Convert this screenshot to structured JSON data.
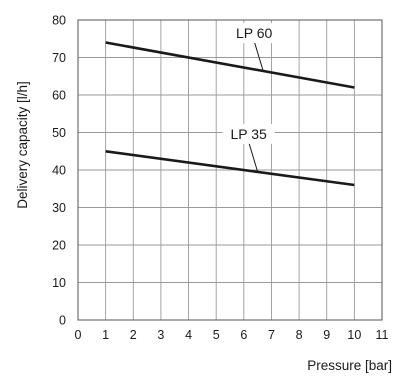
{
  "chart_data": {
    "type": "line",
    "xlabel": "Pressure [bar]",
    "ylabel": "Delivery capacity [l/h]",
    "xlim": [
      0,
      11
    ],
    "ylim": [
      0,
      80
    ],
    "x_ticks": [
      "0",
      "1",
      "2",
      "3",
      "4",
      "5",
      "6",
      "7",
      "8",
      "9",
      "10",
      "11"
    ],
    "y_ticks": [
      "0",
      "10",
      "20",
      "30",
      "40",
      "50",
      "60",
      "70",
      "80"
    ],
    "grid": true,
    "legend": "inline labels",
    "series": [
      {
        "name": "LP 60",
        "color": "#1a1a1a",
        "x": [
          1,
          10
        ],
        "y": [
          74,
          62
        ],
        "label_at_x": 6.7
      },
      {
        "name": "LP 35",
        "color": "#1a1a1a",
        "x": [
          1,
          10
        ],
        "y": [
          45,
          36
        ],
        "label_at_x": 6.5
      }
    ]
  }
}
